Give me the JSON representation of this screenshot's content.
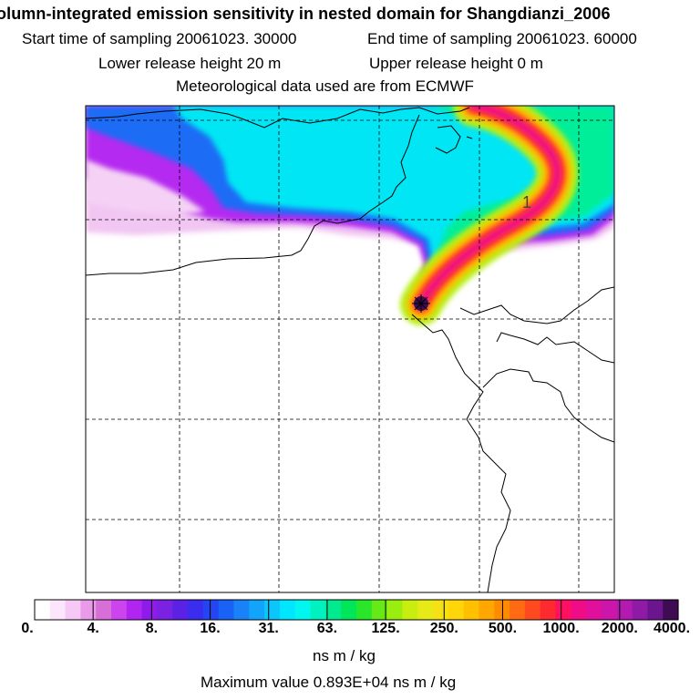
{
  "title": {
    "line1": "olumn-integrated emission sensitivity in nested domain for Shangdianzi_2006",
    "start_time": "Start time of sampling 20061023. 30000",
    "end_time": "End time of sampling 20061023. 60000",
    "lower_release": "Lower release height   20 m",
    "upper_release": "Upper release height    0 m",
    "met_data": "Meteorological data used are from ECMWF"
  },
  "map": {
    "plume_label": "1",
    "grid": "dashed"
  },
  "colorbar": {
    "ticks": [
      "0.",
      "4.",
      "8.",
      "16.",
      "31.",
      "63.",
      "125.",
      "250.",
      "500.",
      "1000.",
      "2000.",
      "4000."
    ],
    "colors": [
      "#ffffff",
      "#fbe6fb",
      "#f6c8f6",
      "#e99ae9",
      "#d86ed8",
      "#cc44ee",
      "#b026f0",
      "#8f1bea",
      "#7a21e2",
      "#5b22e6",
      "#3a2df0",
      "#2146f2",
      "#1a62f6",
      "#1a82f8",
      "#12a4fa",
      "#0cc6fb",
      "#00e6ff",
      "#00f6ee",
      "#00f0c0",
      "#00ea90",
      "#00e65a",
      "#29e629",
      "#66ea17",
      "#9aee0f",
      "#c8ee10",
      "#e6ea16",
      "#f6e214",
      "#ffd60a",
      "#ffc000",
      "#ffa600",
      "#ff8c00",
      "#ff6a12",
      "#ff4a20",
      "#ff2a30",
      "#ff1060",
      "#f00c86",
      "#e0109c",
      "#cc16aa",
      "#b31ab0",
      "#8e1aa6",
      "#6b168e",
      "#3e0c52"
    ],
    "units": "ns m / kg",
    "max_value": "Maximum value  0.893E+04 ns m / kg"
  },
  "colors": {
    "background": "#ffffff",
    "coastline": "#000000"
  }
}
